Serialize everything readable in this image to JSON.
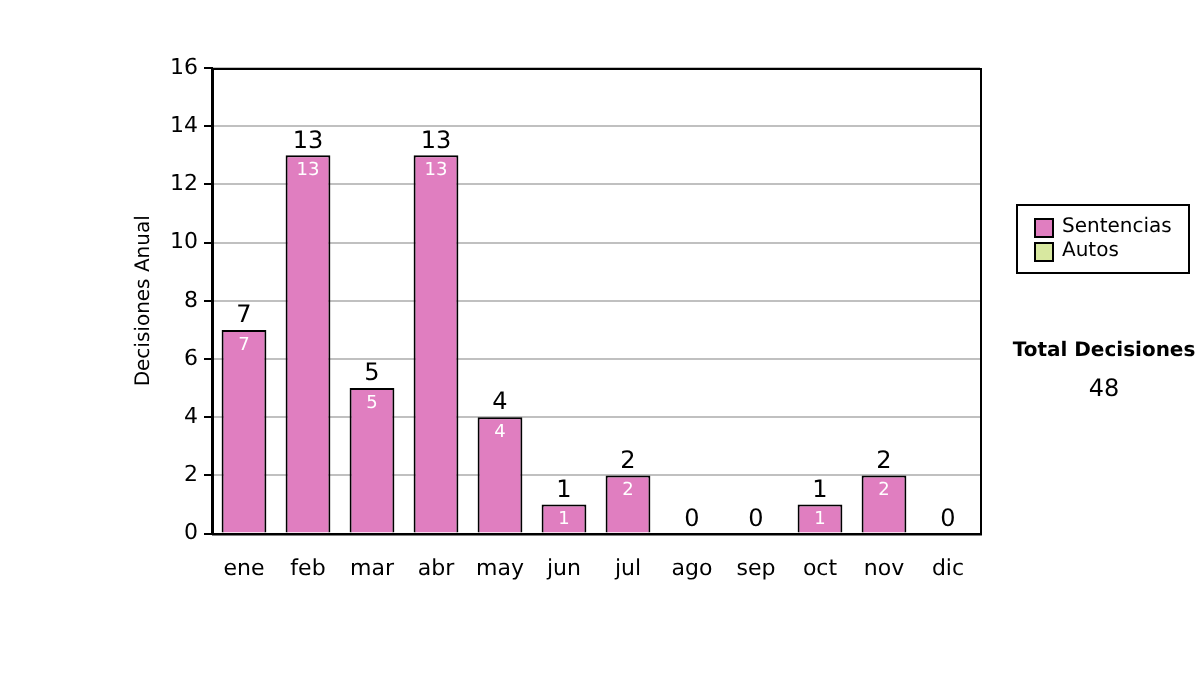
{
  "chart_data": {
    "type": "bar",
    "ylabel": "Decisiones Anual",
    "categories": [
      "ene",
      "feb",
      "mar",
      "abr",
      "may",
      "jun",
      "jul",
      "ago",
      "sep",
      "oct",
      "nov",
      "dic"
    ],
    "stacked": true,
    "series": [
      {
        "name": "Sentencias",
        "color": "#e07ec0",
        "values": [
          7,
          13,
          5,
          13,
          4,
          1,
          2,
          0,
          0,
          1,
          2,
          0
        ],
        "value_labels": [
          "7",
          "13",
          "5",
          "13",
          "4",
          "1",
          "2",
          null,
          null,
          "1",
          "2",
          null
        ]
      },
      {
        "name": "Autos",
        "color": "#d8e8a0",
        "values": [
          0,
          0,
          0,
          0,
          0,
          0,
          0,
          0,
          0,
          0,
          0,
          0
        ]
      }
    ],
    "totals": [
      "7",
      "13",
      "5",
      "13",
      "4",
      "1",
      "2",
      "0",
      "0",
      "1",
      "2",
      "0"
    ],
    "ylim": [
      0,
      16
    ],
    "yticks": [
      0,
      2,
      4,
      6,
      8,
      10,
      12,
      14,
      16
    ],
    "grid": "y",
    "legend": "right",
    "annotations": [
      "Total Decisiones",
      "48"
    ]
  }
}
